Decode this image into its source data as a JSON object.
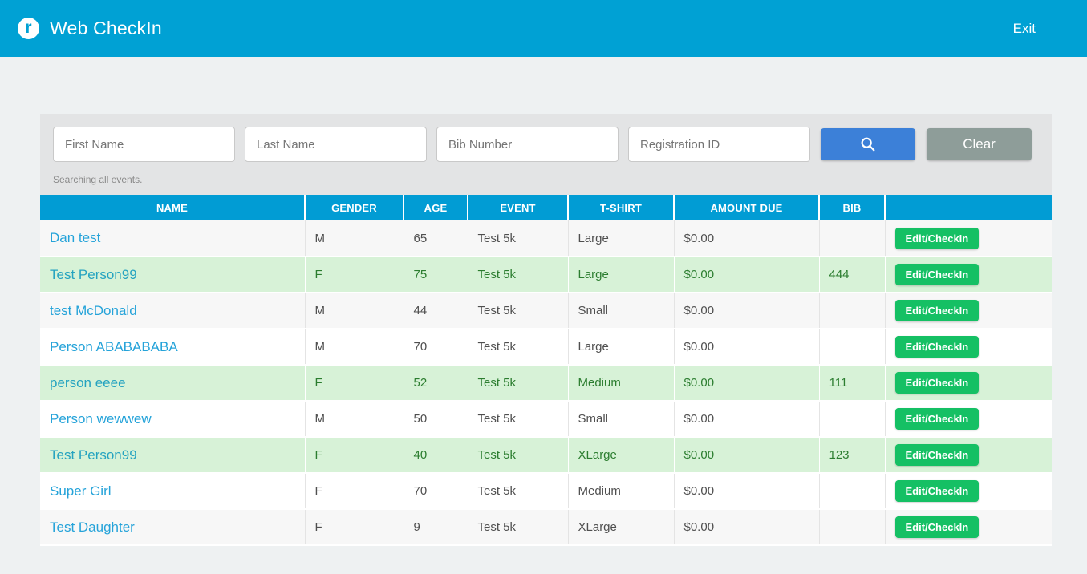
{
  "header": {
    "title": "Web CheckIn",
    "exit_label": "Exit",
    "logo_glyph": "r"
  },
  "search": {
    "fields": [
      {
        "placeholder": "First Name",
        "value": ""
      },
      {
        "placeholder": "Last Name",
        "value": ""
      },
      {
        "placeholder": "Bib Number",
        "value": ""
      },
      {
        "placeholder": "Registration ID",
        "value": ""
      }
    ],
    "search_button_icon": "magnifier-icon",
    "clear_label": "Clear",
    "status_text": "Searching all events."
  },
  "table": {
    "columns": [
      "NAME",
      "GENDER",
      "AGE",
      "EVENT",
      "T-SHIRT",
      "AMOUNT DUE",
      "BIB",
      ""
    ],
    "action_label": "Edit/CheckIn",
    "rows": [
      {
        "name": "Dan test",
        "gender": "M",
        "age": "65",
        "event": "Test 5k",
        "tshirt": "Large",
        "amount": "$0.00",
        "bib": "",
        "checked_in": false
      },
      {
        "name": "Test Person99",
        "gender": "F",
        "age": "75",
        "event": "Test 5k",
        "tshirt": "Large",
        "amount": "$0.00",
        "bib": "444",
        "checked_in": true
      },
      {
        "name": "test McDonald",
        "gender": "M",
        "age": "44",
        "event": "Test 5k",
        "tshirt": "Small",
        "amount": "$0.00",
        "bib": "",
        "checked_in": false
      },
      {
        "name": "Person ABABABABA",
        "gender": "M",
        "age": "70",
        "event": "Test 5k",
        "tshirt": "Large",
        "amount": "$0.00",
        "bib": "",
        "checked_in": false
      },
      {
        "name": "person eeee",
        "gender": "F",
        "age": "52",
        "event": "Test 5k",
        "tshirt": "Medium",
        "amount": "$0.00",
        "bib": "111",
        "checked_in": true
      },
      {
        "name": "Person wewwew",
        "gender": "M",
        "age": "50",
        "event": "Test 5k",
        "tshirt": "Small",
        "amount": "$0.00",
        "bib": "",
        "checked_in": false
      },
      {
        "name": "Test Person99",
        "gender": "F",
        "age": "40",
        "event": "Test 5k",
        "tshirt": "XLarge",
        "amount": "$0.00",
        "bib": "123",
        "checked_in": true
      },
      {
        "name": "Super Girl",
        "gender": "F",
        "age": "70",
        "event": "Test 5k",
        "tshirt": "Medium",
        "amount": "$0.00",
        "bib": "",
        "checked_in": false
      },
      {
        "name": "Test Daughter",
        "gender": "F",
        "age": "9",
        "event": "Test 5k",
        "tshirt": "XLarge",
        "amount": "$0.00",
        "bib": "",
        "checked_in": false
      }
    ]
  },
  "colors": {
    "topbar": "#00a1d4",
    "table_header": "#019cd4",
    "link": "#25a3d9",
    "checked_row_bg": "#d7f2d7",
    "checked_row_text": "#2b7d2f",
    "action_button": "#15c064",
    "search_button": "#3c80d8",
    "clear_button": "#8e9d99",
    "panel_bg": "#e3e4e5",
    "page_bg": "#eef1f2"
  }
}
